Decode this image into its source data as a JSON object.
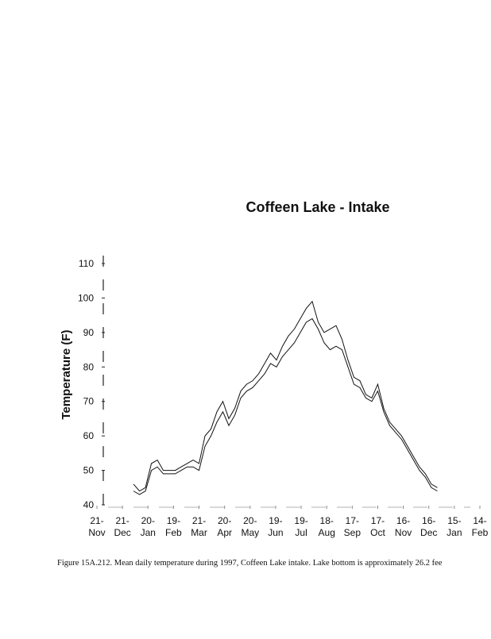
{
  "chart_data": {
    "type": "line",
    "title": "Coffeen Lake - Intake",
    "y_label": "Temperature (F)",
    "caption": "Figure 15A.212. Mean daily temperature during 1997, Coffeen Lake intake. Lake bottom is approximately 26.2 fee",
    "x": [
      43,
      50,
      57,
      64,
      71,
      78,
      85,
      92,
      99,
      106,
      113,
      120,
      127,
      134,
      141,
      148,
      155,
      162,
      169,
      176,
      183,
      190,
      197,
      204,
      211,
      218,
      225,
      232,
      239,
      246,
      253,
      260,
      267,
      274,
      281,
      288,
      295,
      302,
      309,
      316,
      323,
      330,
      337,
      344,
      351,
      358,
      365,
      372,
      379,
      386,
      393,
      400
    ],
    "series": [
      {
        "color": "#111111",
        "values": [
          46,
          44,
          45,
          52,
          53,
          50,
          50,
          50,
          51,
          52,
          53,
          52,
          60,
          62,
          67,
          70,
          65,
          68,
          73,
          75,
          76,
          78,
          81,
          84,
          82,
          86,
          89,
          91,
          94,
          97,
          99,
          93,
          90,
          91,
          92,
          88,
          82,
          77,
          76,
          72,
          71,
          75,
          68,
          64,
          62,
          60,
          57,
          54,
          51,
          49,
          46,
          45
        ]
      },
      {
        "color": "#111111",
        "values": [
          44,
          43,
          44,
          50,
          51,
          49,
          49,
          49,
          50,
          51,
          51,
          50,
          57,
          60,
          64,
          67,
          63,
          66,
          71,
          73,
          74,
          76,
          78,
          81,
          80,
          83,
          85,
          87,
          90,
          93,
          94,
          91,
          87,
          85,
          86,
          85,
          80,
          75,
          74,
          71,
          70,
          73,
          67,
          63,
          61,
          59,
          56,
          53,
          50,
          48,
          45,
          44
        ]
      }
    ],
    "xlim": [
      0,
      450
    ],
    "xticks": [
      {
        "value": 0,
        "label": "21-Nov"
      },
      {
        "value": 30,
        "label": "21-Dec"
      },
      {
        "value": 60,
        "label": "20-Jan"
      },
      {
        "value": 90,
        "label": "19-Feb"
      },
      {
        "value": 120,
        "label": "21-Mar"
      },
      {
        "value": 150,
        "label": "20-Apr"
      },
      {
        "value": 180,
        "label": "20-May"
      },
      {
        "value": 210,
        "label": "19-Jun"
      },
      {
        "value": 240,
        "label": "19-Jul"
      },
      {
        "value": 270,
        "label": "18-Aug"
      },
      {
        "value": 300,
        "label": "17-Sep"
      },
      {
        "value": 330,
        "label": "17-Oct"
      },
      {
        "value": 360,
        "label": "16-Nov"
      },
      {
        "value": 390,
        "label": "16-Dec"
      },
      {
        "value": 420,
        "label": "15-Jan"
      },
      {
        "value": 450,
        "label": "14-Feb"
      }
    ],
    "ylim": [
      40,
      110
    ],
    "yticks": [
      40,
      50,
      60,
      70,
      80,
      90,
      100,
      110
    ]
  }
}
